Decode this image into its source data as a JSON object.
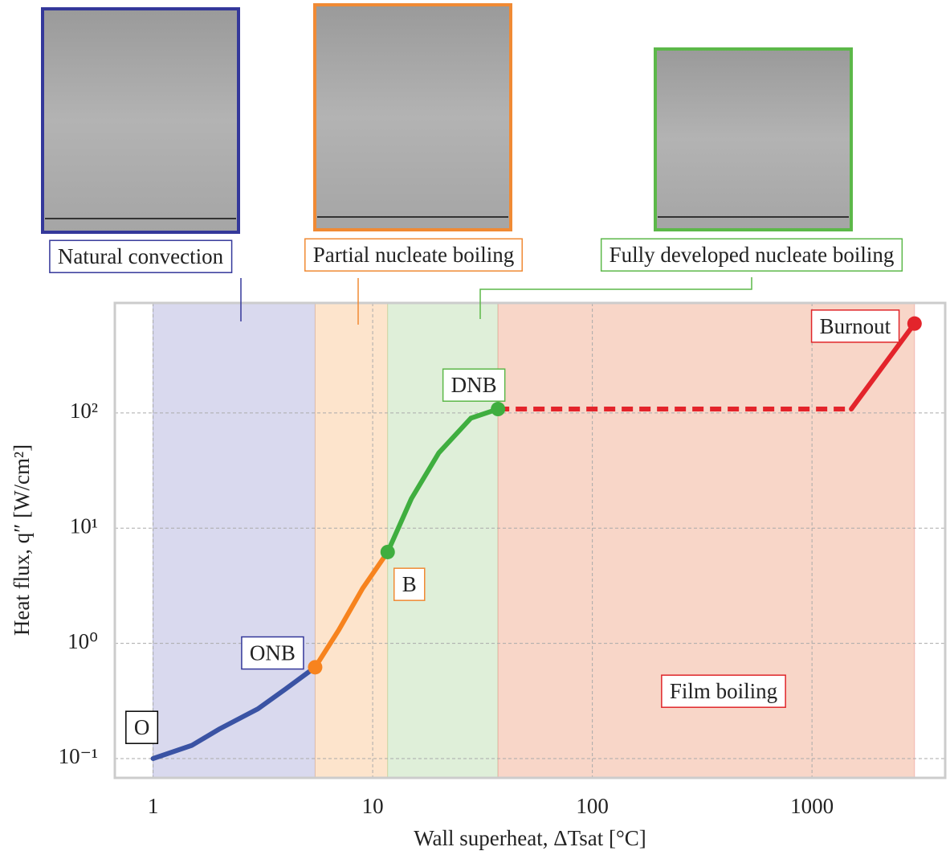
{
  "chart_data": {
    "type": "line",
    "log_x": true,
    "log_y": true,
    "grid": true,
    "xlabel": "Wall superheat, ΔTsat [°C]",
    "ylabel": "Heat flux, q″ [W/cm²]",
    "xlim": [
      0.67,
      4040
    ],
    "ylim": [
      0.068,
      900
    ],
    "xticks": [
      1,
      10,
      100,
      1000
    ],
    "yticks": [
      {
        "value": 0.1,
        "label": "10⁻¹"
      },
      {
        "value": 1,
        "label": "10⁰"
      },
      {
        "value": 10,
        "label": "10¹"
      },
      {
        "value": 100,
        "label": "10²"
      }
    ],
    "regions": [
      {
        "name": "Natural convection",
        "x": [
          1,
          5.47
        ],
        "fill": "#d9d9ee",
        "color": "#34389a"
      },
      {
        "name": "Partial nucleate boiling",
        "x": [
          5.47,
          11.7
        ],
        "fill": "#fde4cc",
        "color": "#f08a34"
      },
      {
        "name": "Fully developed nucleate boiling",
        "x": [
          11.7,
          37.2
        ],
        "fill": "#dfefd9",
        "color": "#5cb849"
      },
      {
        "name": "Film boiling",
        "x": [
          37.2,
          2930
        ],
        "fill": "#f8d6c8",
        "color": "#e0262a"
      }
    ],
    "series": [
      {
        "color": "#3a53a4",
        "dashed": false,
        "x": [
          1,
          1.5,
          2,
          3,
          4,
          5.47
        ],
        "values": [
          0.1,
          0.13,
          0.18,
          0.27,
          0.4,
          0.62
        ]
      },
      {
        "color": "#f7831e",
        "dashed": false,
        "x": [
          5.47,
          7,
          9,
          11.7
        ],
        "values": [
          0.62,
          1.3,
          3,
          6.2
        ]
      },
      {
        "color": "#3fae3f",
        "dashed": false,
        "x": [
          11.7,
          15,
          20,
          28,
          37.2
        ],
        "values": [
          6.2,
          18,
          45,
          90,
          108
        ]
      },
      {
        "color": "#e3242b",
        "dashed": true,
        "x": [
          37.2,
          1510
        ],
        "values": [
          108,
          108
        ]
      },
      {
        "color": "#e3242b",
        "dashed": false,
        "x": [
          1510,
          2930
        ],
        "values": [
          108,
          596
        ]
      }
    ],
    "points": [
      {
        "label": "O",
        "x": 1,
        "y": 0.1,
        "marker": false,
        "color": "#3a53a4",
        "box_color": "#000000"
      },
      {
        "label": "ONB",
        "x": 5.47,
        "y": 0.62,
        "marker": true,
        "color": "#f7831e",
        "box_color": "#34389a"
      },
      {
        "label": "B",
        "x": 11.7,
        "y": 6.2,
        "marker": true,
        "color": "#3fae3f",
        "box_color": "#f08a34"
      },
      {
        "label": "DNB",
        "x": 37.2,
        "y": 108,
        "marker": true,
        "color": "#3fae3f",
        "box_color": "#5cb849"
      },
      {
        "label": "Burnout",
        "x": 2930,
        "y": 596,
        "marker": true,
        "color": "#e3242b",
        "box_color": "#e0262a"
      }
    ]
  }
}
